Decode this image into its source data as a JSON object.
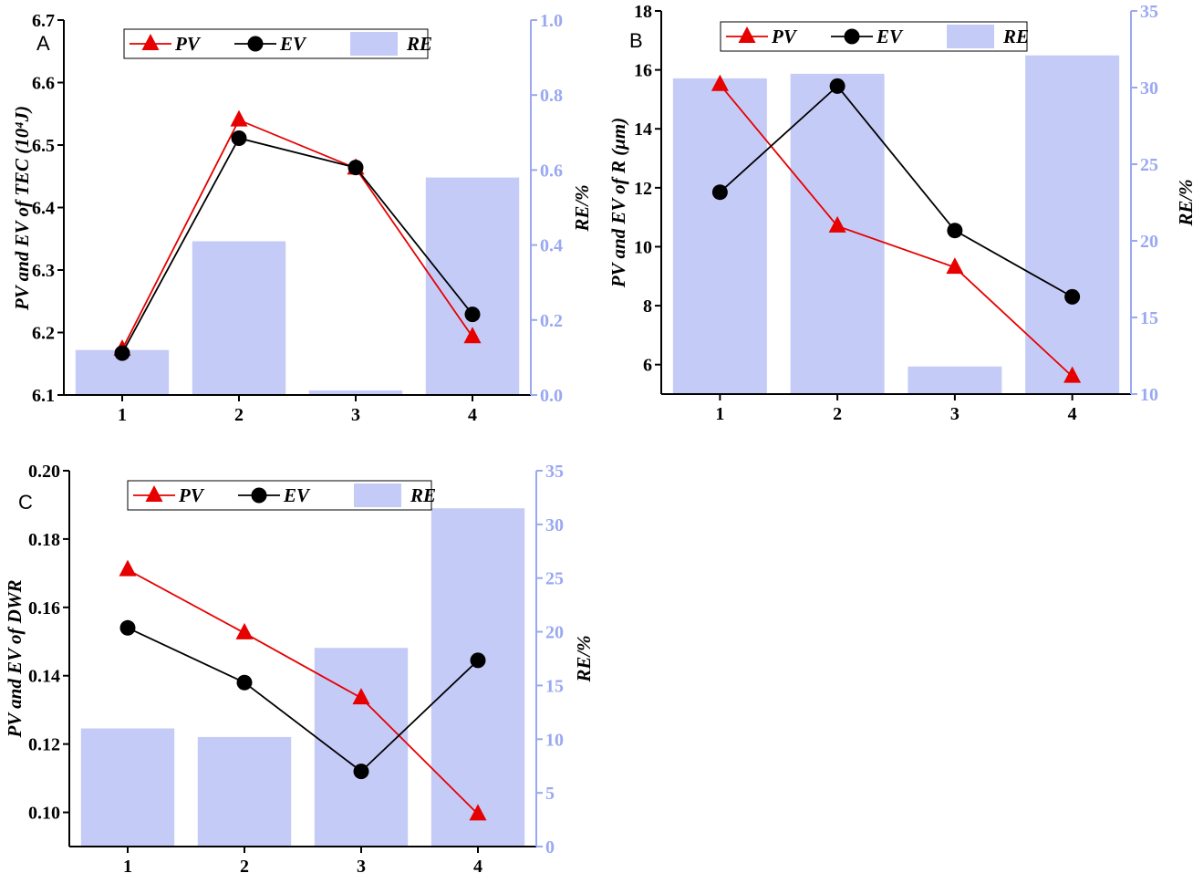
{
  "chart_data": [
    {
      "type": "bar+line",
      "panel_label": "A",
      "categories": [
        "1",
        "2",
        "3",
        "4"
      ],
      "ylabel_left": "PV and EV of TEC (10⁴J)",
      "ylabel_right": "RE/%",
      "ylim_left": [
        6.1,
        6.7
      ],
      "ylim_right": [
        0.0,
        1.0
      ],
      "yticks_left": [
        "6.1",
        "6.2",
        "6.3",
        "6.4",
        "6.5",
        "6.6",
        "6.7"
      ],
      "yticks_right": [
        "0.0",
        "0.2",
        "0.4",
        "0.6",
        "0.8",
        "1.0"
      ],
      "legend": [
        "PV",
        "EV",
        "RE"
      ],
      "series": [
        {
          "name": "PV",
          "kind": "line",
          "marker": "triangle",
          "color": "#e60000",
          "values": [
            6.173,
            6.54,
            6.463,
            6.193
          ]
        },
        {
          "name": "EV",
          "kind": "line",
          "marker": "circle",
          "color": "#000000",
          "values": [
            6.167,
            6.511,
            6.464,
            6.229
          ]
        },
        {
          "name": "RE",
          "kind": "bar",
          "color": "#c5cbf7",
          "values": [
            0.12,
            0.41,
            0.012,
            0.58
          ]
        }
      ]
    },
    {
      "type": "bar+line",
      "panel_label": "B",
      "categories": [
        "1",
        "2",
        "3",
        "4"
      ],
      "ylabel_left": "PV and EV of R (μm)",
      "ylabel_right": "RE/%",
      "ylim_left": [
        5,
        18
      ],
      "ylim_right": [
        10,
        35
      ],
      "yticks_left": [
        "6",
        "8",
        "10",
        "12",
        "14",
        "16",
        "18"
      ],
      "yticks_right": [
        "10",
        "15",
        "20",
        "25",
        "30",
        "35"
      ],
      "legend": [
        "PV",
        "EV",
        "RE"
      ],
      "series": [
        {
          "name": "PV",
          "kind": "line",
          "marker": "triangle",
          "color": "#e60000",
          "values": [
            15.5,
            10.7,
            9.3,
            5.6
          ]
        },
        {
          "name": "EV",
          "kind": "line",
          "marker": "circle",
          "color": "#000000",
          "values": [
            11.85,
            15.45,
            10.55,
            8.3
          ]
        },
        {
          "name": "RE",
          "kind": "bar",
          "color": "#c5cbf7",
          "values": [
            30.6,
            30.9,
            11.8,
            32.1
          ]
        }
      ]
    },
    {
      "type": "bar+line",
      "panel_label": "C",
      "categories": [
        "1",
        "2",
        "3",
        "4"
      ],
      "ylabel_left": "PV and EV of DWR",
      "ylabel_right": "RE/%",
      "ylim_left": [
        0.09,
        0.2
      ],
      "ylim_right": [
        0,
        35
      ],
      "yticks_left": [
        "0.10",
        "0.12",
        "0.14",
        "0.16",
        "0.18",
        "0.20"
      ],
      "yticks_right": [
        "0",
        "5",
        "10",
        "15",
        "20",
        "25",
        "30",
        "35"
      ],
      "legend": [
        "PV",
        "EV",
        "RE"
      ],
      "series": [
        {
          "name": "PV",
          "kind": "line",
          "marker": "triangle",
          "color": "#e60000",
          "values": [
            0.171,
            0.1525,
            0.1335,
            0.0995
          ]
        },
        {
          "name": "EV",
          "kind": "line",
          "marker": "circle",
          "color": "#000000",
          "values": [
            0.154,
            0.138,
            0.112,
            0.1445
          ]
        },
        {
          "name": "RE",
          "kind": "bar",
          "color": "#c5cbf7",
          "values": [
            11.0,
            10.2,
            18.5,
            31.5
          ]
        }
      ]
    }
  ]
}
